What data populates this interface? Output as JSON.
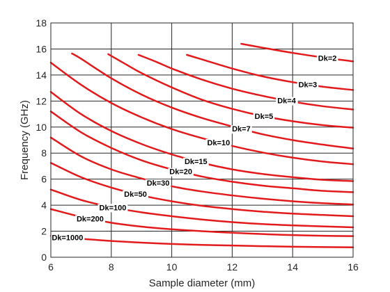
{
  "chart_data": {
    "type": "line",
    "xlabel": "Sample diameter (mm)",
    "ylabel": "Frequency (GHz)",
    "xlim": [
      6,
      16
    ],
    "ylim": [
      0,
      18
    ],
    "xticks": [
      6,
      8,
      10,
      12,
      14,
      16
    ],
    "yticks": [
      0,
      2,
      4,
      6,
      8,
      10,
      12,
      14,
      16,
      18
    ],
    "grid": true,
    "line_color": "#e31a1c",
    "series": [
      {
        "name": "Dk=2",
        "label_x": 15.15,
        "points": [
          [
            12.3,
            16.4
          ],
          [
            13,
            16.1
          ],
          [
            14,
            15.7
          ],
          [
            15,
            15.35
          ],
          [
            16,
            15.05
          ]
        ]
      },
      {
        "name": "Dk=3",
        "label_x": 14.5,
        "points": [
          [
            10.5,
            15.55
          ],
          [
            11,
            15.2
          ],
          [
            12,
            14.5
          ],
          [
            13,
            13.9
          ],
          [
            14,
            13.45
          ],
          [
            15,
            13.1
          ],
          [
            16,
            12.85
          ]
        ]
      },
      {
        "name": "Dk=4",
        "label_x": 13.8,
        "points": [
          [
            8.9,
            15.55
          ],
          [
            9.5,
            15.0
          ],
          [
            10,
            14.5
          ],
          [
            11,
            13.65
          ],
          [
            12,
            12.95
          ],
          [
            13,
            12.4
          ],
          [
            14,
            11.95
          ],
          [
            15,
            11.6
          ],
          [
            16,
            11.35
          ]
        ]
      },
      {
        "name": "Dk=5",
        "label_x": 13.05,
        "points": [
          [
            7.9,
            15.6
          ],
          [
            8.5,
            14.8
          ],
          [
            9,
            14.15
          ],
          [
            10,
            13.05
          ],
          [
            11,
            12.1
          ],
          [
            12,
            11.4
          ],
          [
            13,
            10.85
          ],
          [
            14,
            10.45
          ],
          [
            15,
            10.15
          ],
          [
            16,
            9.95
          ]
        ]
      },
      {
        "name": "Dk=7",
        "label_x": 12.3,
        "points": [
          [
            6.7,
            15.65
          ],
          [
            7,
            15.25
          ],
          [
            8,
            13.75
          ],
          [
            9,
            12.5
          ],
          [
            10,
            11.5
          ],
          [
            11,
            10.7
          ],
          [
            12,
            10.05
          ],
          [
            13,
            9.45
          ],
          [
            14,
            9.0
          ],
          [
            15,
            8.65
          ],
          [
            16,
            8.35
          ]
        ]
      },
      {
        "name": "Dk=10",
        "label_x": 11.55,
        "points": [
          [
            6,
            14.95
          ],
          [
            7,
            13.25
          ],
          [
            8,
            11.85
          ],
          [
            9,
            10.75
          ],
          [
            10,
            9.85
          ],
          [
            11,
            9.15
          ],
          [
            12,
            8.55
          ],
          [
            13,
            8.05
          ],
          [
            14,
            7.65
          ],
          [
            15,
            7.35
          ],
          [
            16,
            7.15
          ]
        ]
      },
      {
        "name": "Dk=15",
        "label_x": 10.8,
        "points": [
          [
            6,
            12.7
          ],
          [
            7,
            11.0
          ],
          [
            8,
            9.7
          ],
          [
            9,
            8.7
          ],
          [
            10,
            7.9
          ],
          [
            11,
            7.25
          ],
          [
            12,
            6.75
          ],
          [
            13,
            6.4
          ],
          [
            14,
            6.15
          ],
          [
            15,
            5.95
          ],
          [
            16,
            5.85
          ]
        ]
      },
      {
        "name": "Dk=20",
        "label_x": 10.3,
        "points": [
          [
            6,
            11.2
          ],
          [
            7,
            9.6
          ],
          [
            8,
            8.4
          ],
          [
            9,
            7.45
          ],
          [
            10,
            6.75
          ],
          [
            11,
            6.2
          ],
          [
            12,
            5.8
          ],
          [
            13,
            5.5
          ],
          [
            14,
            5.3
          ],
          [
            15,
            5.1
          ],
          [
            16,
            5.0
          ]
        ]
      },
      {
        "name": "Dk=30",
        "label_x": 9.55,
        "points": [
          [
            6,
            9.2
          ],
          [
            7,
            7.75
          ],
          [
            8,
            6.75
          ],
          [
            9,
            6.05
          ],
          [
            10,
            5.45
          ],
          [
            11,
            5.05
          ],
          [
            12,
            4.75
          ],
          [
            13,
            4.5
          ],
          [
            14,
            4.3
          ],
          [
            15,
            4.15
          ],
          [
            16,
            4.05
          ]
        ]
      },
      {
        "name": "Dk=50",
        "label_x": 8.8,
        "points": [
          [
            6,
            7.25
          ],
          [
            7,
            6.15
          ],
          [
            8,
            5.35
          ],
          [
            9,
            4.75
          ],
          [
            10,
            4.3
          ],
          [
            11,
            3.95
          ],
          [
            12,
            3.7
          ],
          [
            13,
            3.5
          ],
          [
            14,
            3.35
          ],
          [
            15,
            3.25
          ],
          [
            16,
            3.15
          ]
        ]
      },
      {
        "name": "Dk=100",
        "label_x": 8.05,
        "points": [
          [
            6,
            5.2
          ],
          [
            7,
            4.4
          ],
          [
            8,
            3.85
          ],
          [
            9,
            3.45
          ],
          [
            10,
            3.15
          ],
          [
            11,
            2.9
          ],
          [
            12,
            2.7
          ],
          [
            13,
            2.55
          ],
          [
            14,
            2.45
          ],
          [
            15,
            2.37
          ],
          [
            16,
            2.3
          ]
        ]
      },
      {
        "name": "Dk=200",
        "label_x": 7.3,
        "points": [
          [
            6,
            3.7
          ],
          [
            7,
            3.1
          ],
          [
            8,
            2.65
          ],
          [
            9,
            2.35
          ],
          [
            10,
            2.15
          ],
          [
            11,
            2.0
          ],
          [
            12,
            1.88
          ],
          [
            13,
            1.78
          ],
          [
            14,
            1.7
          ],
          [
            15,
            1.65
          ],
          [
            16,
            1.62
          ]
        ]
      },
      {
        "name": "Dk=1000",
        "label_x": 6.55,
        "points": [
          [
            6,
            1.65
          ],
          [
            7,
            1.42
          ],
          [
            8,
            1.25
          ],
          [
            9,
            1.12
          ],
          [
            10,
            1.02
          ],
          [
            11,
            0.95
          ],
          [
            12,
            0.9
          ],
          [
            13,
            0.85
          ],
          [
            14,
            0.81
          ],
          [
            15,
            0.78
          ],
          [
            16,
            0.76
          ]
        ]
      }
    ]
  }
}
